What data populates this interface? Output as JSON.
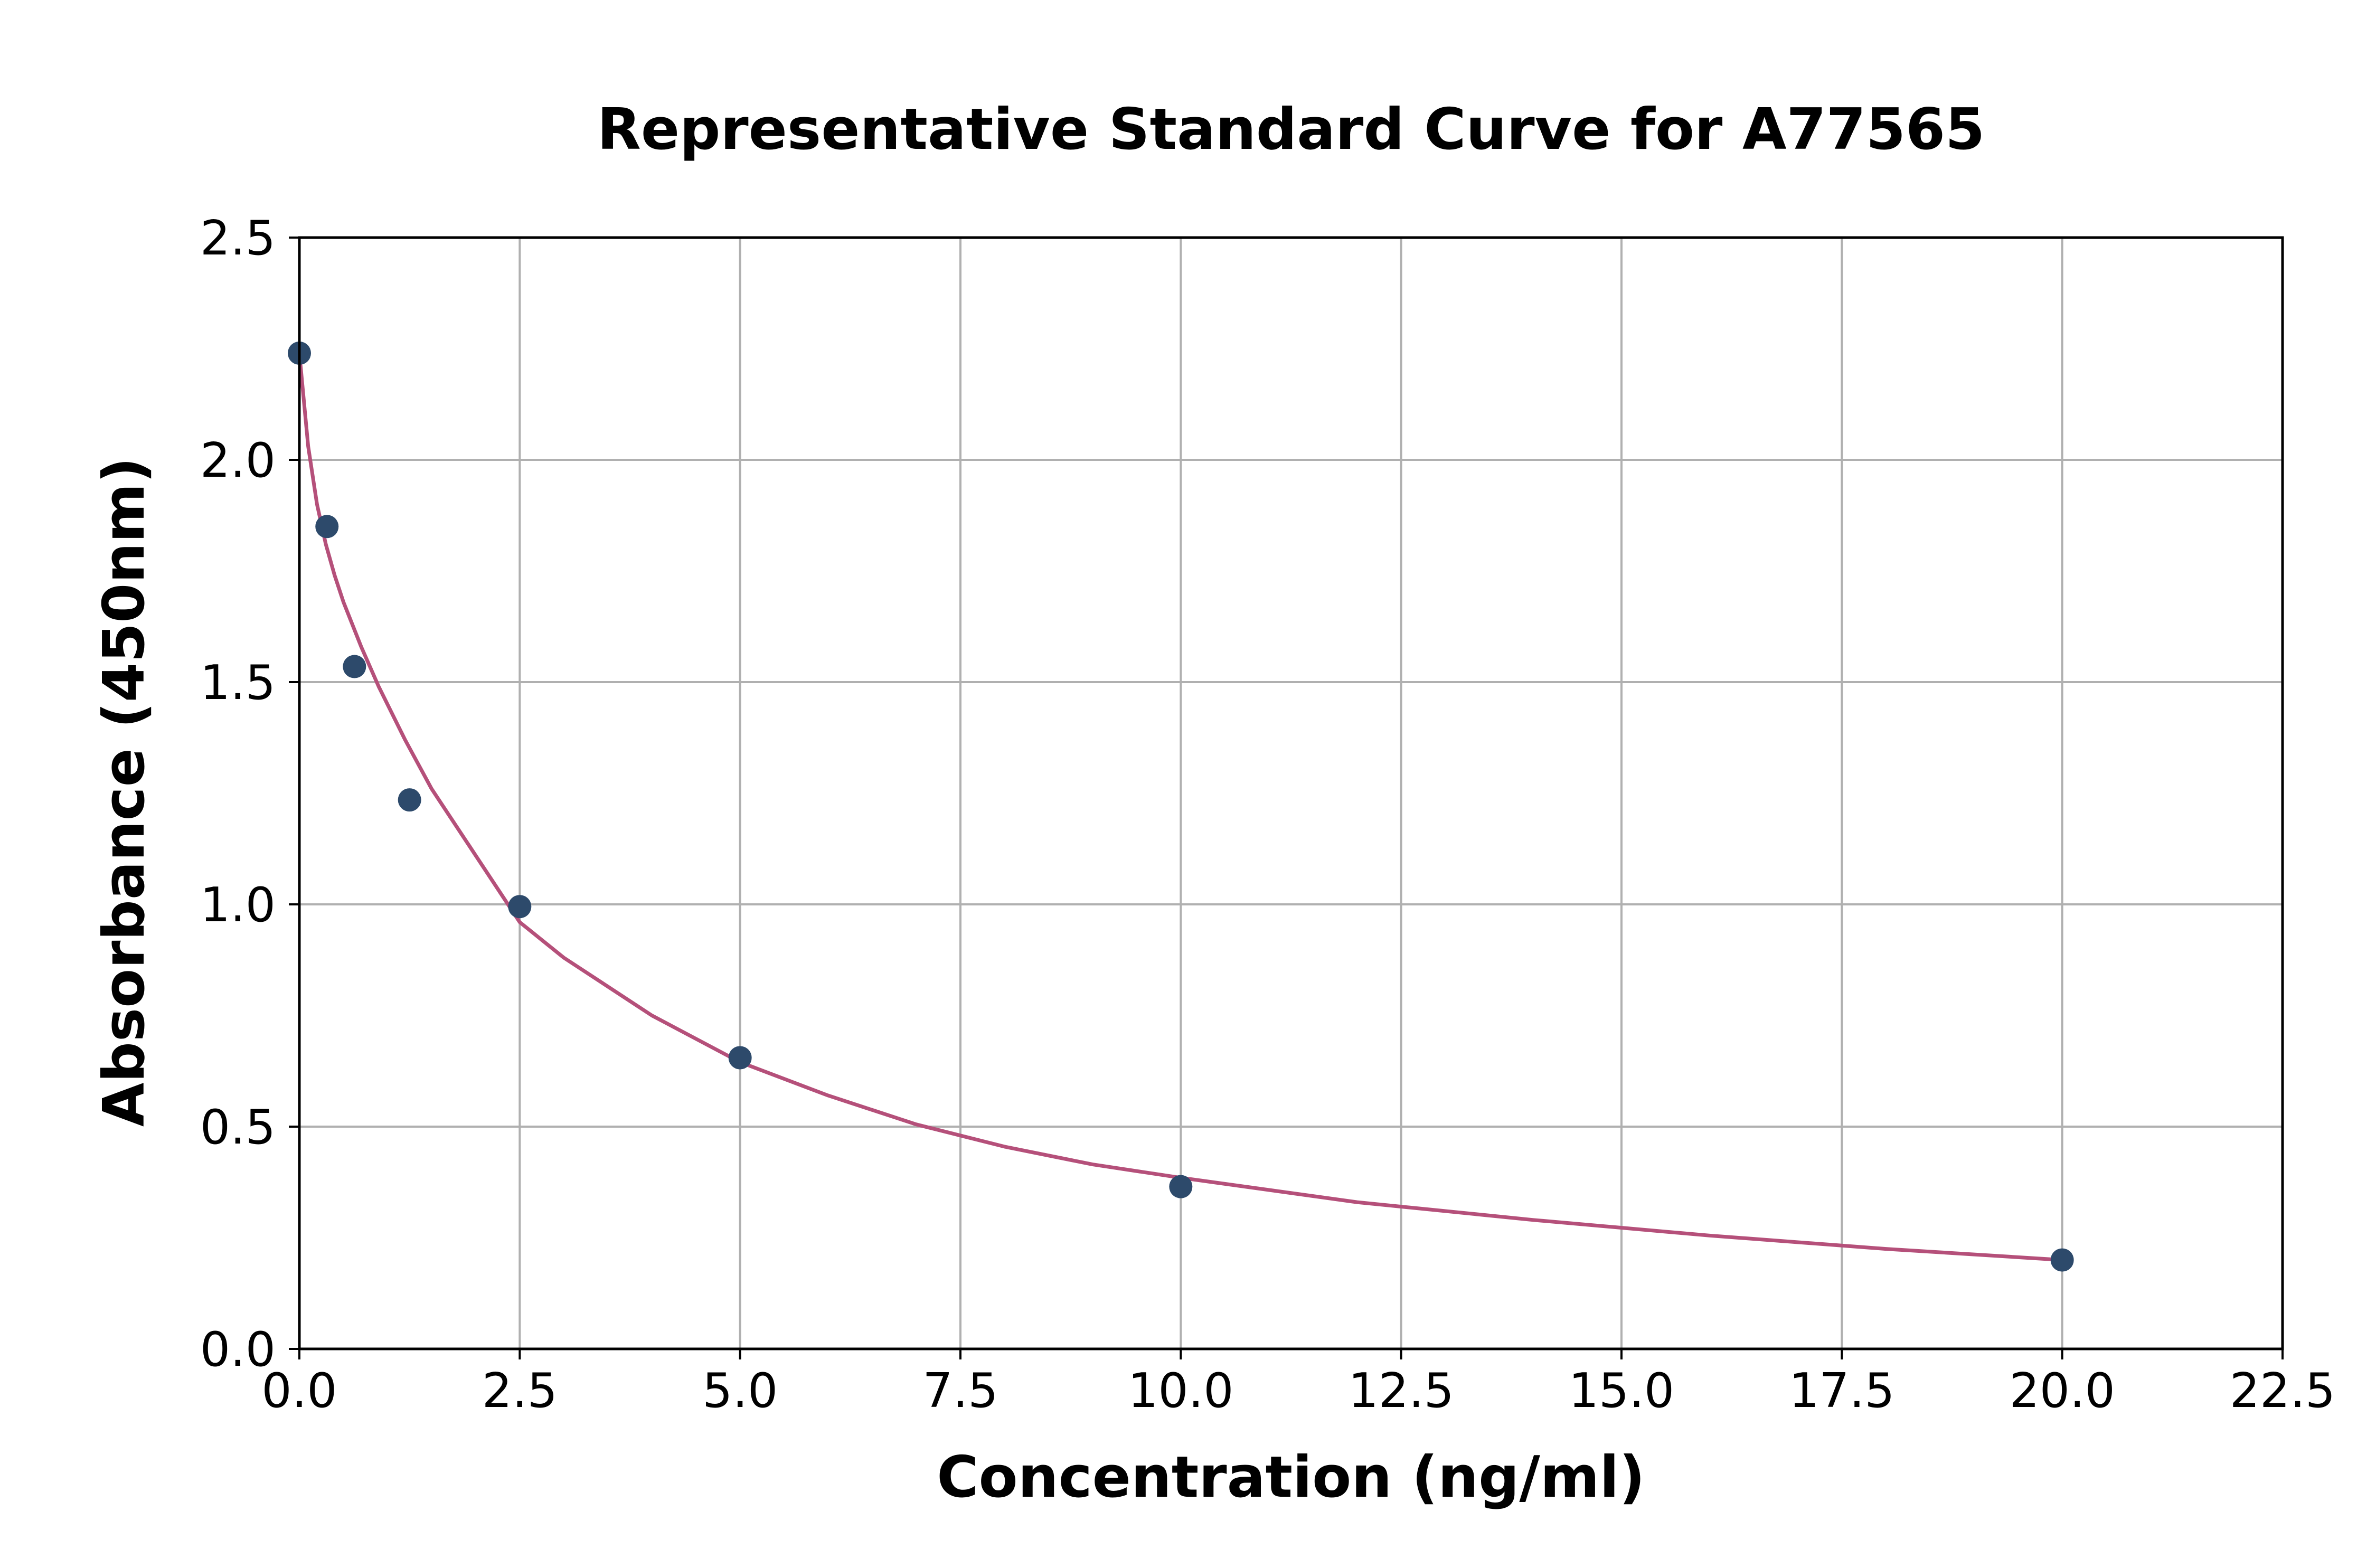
{
  "chart_data": {
    "type": "scatter",
    "title": "Representative Standard Curve for A77565",
    "xlabel": "Concentration (ng/ml)",
    "ylabel": "Absorbance (450nm)",
    "xlim": [
      0,
      22.5
    ],
    "ylim": [
      0,
      2.5
    ],
    "x_ticks": [
      0,
      2.5,
      5,
      7.5,
      10,
      12.5,
      15,
      17.5,
      20,
      22.5
    ],
    "y_ticks": [
      0,
      0.5,
      1,
      1.5,
      2,
      2.5
    ],
    "x_tick_labels": [
      "0.0",
      "2.5",
      "5.0",
      "7.5",
      "10.0",
      "12.5",
      "15.0",
      "17.5",
      "20.0",
      "22.5"
    ],
    "y_tick_labels": [
      "0.0",
      "0.5",
      "1.0",
      "1.5",
      "2.0",
      "2.5"
    ],
    "grid": true,
    "series": [
      {
        "kind": "points",
        "color": "#2d4a6b",
        "x": [
          0,
          0.313,
          0.625,
          1.25,
          2.5,
          5,
          10,
          20
        ],
        "y": [
          2.24,
          1.85,
          1.535,
          1.235,
          0.995,
          0.655,
          0.365,
          0.2
        ]
      },
      {
        "kind": "fit-curve",
        "color": "#b5507a",
        "x": [
          0,
          0.1,
          0.2,
          0.3,
          0.4,
          0.5,
          0.7,
          0.9,
          1.2,
          1.5,
          2,
          2.5,
          3,
          4,
          5,
          6,
          7,
          8,
          9,
          10,
          12,
          14,
          16,
          18,
          20
        ],
        "y": [
          2.24,
          2.03,
          1.9,
          1.81,
          1.74,
          1.68,
          1.58,
          1.49,
          1.37,
          1.26,
          1.11,
          0.96,
          0.88,
          0.75,
          0.645,
          0.57,
          0.505,
          0.455,
          0.415,
          0.385,
          0.33,
          0.29,
          0.255,
          0.225,
          0.2
        ]
      }
    ]
  }
}
